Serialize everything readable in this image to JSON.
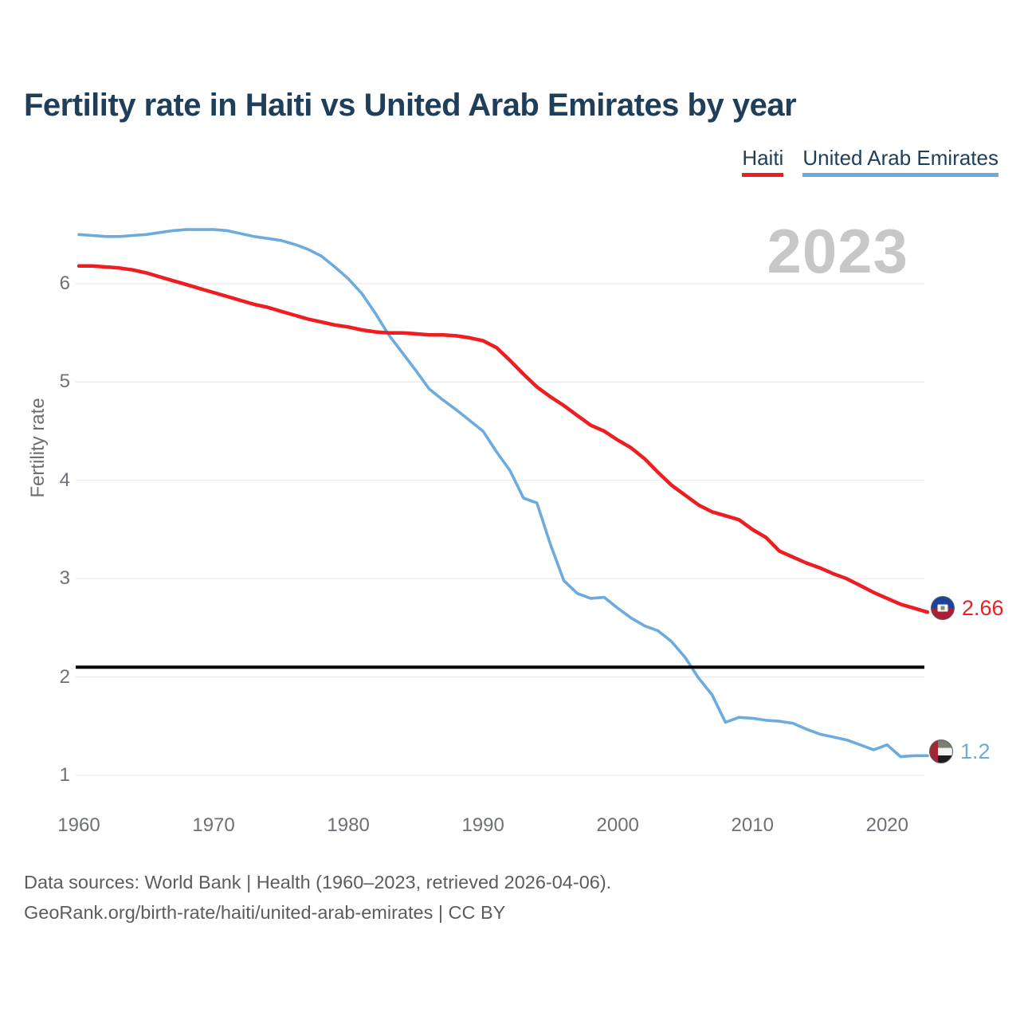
{
  "header": {
    "title": "Fertility rate in Haiti vs United Arab Emirates by year"
  },
  "legend": [
    {
      "label": "Haiti",
      "color": "#ed1d21"
    },
    {
      "label": "United Arab Emirates",
      "color": "#6cabdd"
    }
  ],
  "watermark": "2023",
  "end_labels": [
    {
      "series": "Haiti",
      "value": "2.66",
      "color": "#ed1d21"
    },
    {
      "series": "United Arab Emirates",
      "value": "1.2",
      "color": "#6cabdd"
    }
  ],
  "footer": {
    "line1": "Data sources: World Bank | Health (1960–2023, retrieved 2026-04-06).",
    "line2": "GeoRank.org/birth-rate/haiti/united-arab-emirates | CC BY"
  },
  "chart_data": {
    "type": "line",
    "title": "Fertility rate in Haiti vs United Arab Emirates by year",
    "xlabel": "",
    "ylabel": "Fertility rate",
    "xlim": [
      1960,
      2023
    ],
    "ylim": [
      0.9,
      6.6
    ],
    "grid": true,
    "legend_position": "top-right",
    "x_ticks": [
      1960,
      1970,
      1980,
      1990,
      2000,
      2010,
      2020
    ],
    "y_ticks": [
      1,
      2,
      3,
      4,
      5,
      6
    ],
    "benchmark_line": {
      "value": 2.1,
      "color": "#000000"
    },
    "x": [
      1960,
      1961,
      1962,
      1963,
      1964,
      1965,
      1966,
      1967,
      1968,
      1969,
      1970,
      1971,
      1972,
      1973,
      1974,
      1975,
      1976,
      1977,
      1978,
      1979,
      1980,
      1981,
      1982,
      1983,
      1984,
      1985,
      1986,
      1987,
      1988,
      1989,
      1990,
      1991,
      1992,
      1993,
      1994,
      1995,
      1996,
      1997,
      1998,
      1999,
      2000,
      2001,
      2002,
      2003,
      2004,
      2005,
      2006,
      2007,
      2008,
      2009,
      2010,
      2011,
      2012,
      2013,
      2014,
      2015,
      2016,
      2017,
      2018,
      2019,
      2020,
      2021,
      2022,
      2023
    ],
    "series": [
      {
        "name": "Haiti",
        "color": "#ed1d21",
        "end_value": 2.66,
        "values": [
          6.18,
          6.18,
          6.17,
          6.16,
          6.14,
          6.11,
          6.07,
          6.03,
          5.99,
          5.95,
          5.91,
          5.87,
          5.83,
          5.79,
          5.76,
          5.72,
          5.68,
          5.64,
          5.61,
          5.58,
          5.56,
          5.53,
          5.51,
          5.5,
          5.5,
          5.49,
          5.48,
          5.48,
          5.47,
          5.45,
          5.42,
          5.35,
          5.22,
          5.08,
          4.95,
          4.85,
          4.76,
          4.66,
          4.56,
          4.5,
          4.41,
          4.33,
          4.22,
          4.08,
          3.95,
          3.85,
          3.75,
          3.68,
          3.64,
          3.6,
          3.5,
          3.42,
          3.28,
          3.22,
          3.16,
          3.11,
          3.05,
          3.0,
          2.93,
          2.86,
          2.8,
          2.74,
          2.7,
          2.66
        ]
      },
      {
        "name": "United Arab Emirates",
        "color": "#6cabdd",
        "end_value": 1.2,
        "values": [
          6.5,
          6.49,
          6.48,
          6.48,
          6.49,
          6.5,
          6.52,
          6.54,
          6.55,
          6.55,
          6.55,
          6.54,
          6.51,
          6.48,
          6.46,
          6.44,
          6.4,
          6.35,
          6.28,
          6.17,
          6.05,
          5.9,
          5.7,
          5.48,
          5.3,
          5.12,
          4.93,
          4.82,
          4.72,
          4.61,
          4.5,
          4.29,
          4.1,
          3.82,
          3.77,
          3.35,
          2.98,
          2.85,
          2.8,
          2.81,
          2.7,
          2.6,
          2.52,
          2.47,
          2.36,
          2.2,
          1.99,
          1.82,
          1.54,
          1.59,
          1.58,
          1.56,
          1.55,
          1.53,
          1.47,
          1.42,
          1.39,
          1.36,
          1.31,
          1.26,
          1.31,
          1.19,
          1.2,
          1.2
        ]
      }
    ]
  }
}
